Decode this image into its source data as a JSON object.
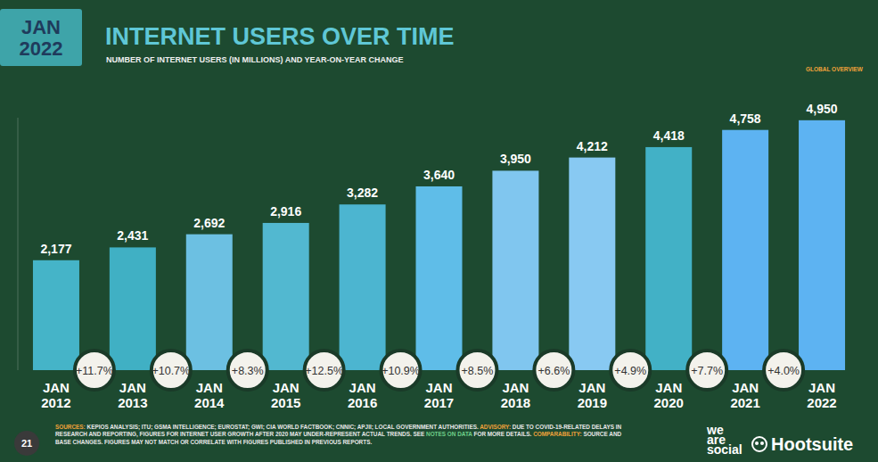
{
  "chart_data": {
    "type": "bar",
    "title": "INTERNET USERS OVER TIME",
    "subtitle": "NUMBER OF INTERNET USERS (IN MILLIONS) AND YEAR-ON-YEAR CHANGE",
    "date_badge": "JAN 2022",
    "section": "GLOBAL OVERVIEW",
    "categories": [
      "JAN 2012",
      "JAN 2013",
      "JAN 2014",
      "JAN 2015",
      "JAN 2016",
      "JAN 2017",
      "JAN 2018",
      "JAN 2019",
      "JAN 2020",
      "JAN 2021",
      "JAN 2022"
    ],
    "values": [
      2177,
      2431,
      2692,
      2916,
      3282,
      3640,
      3950,
      4212,
      4418,
      4758,
      4950
    ],
    "value_labels": [
      "2,177",
      "2,431",
      "2,692",
      "2,916",
      "3,282",
      "3,640",
      "3,950",
      "4,212",
      "4,418",
      "4,758",
      "4,950"
    ],
    "colors": [
      "#45b4c8",
      "#40b0c4",
      "#6cc0e2",
      "#52b8d0",
      "#4cb5d0",
      "#5fbde8",
      "#80c6ef",
      "#88c9f2",
      "#42b1c6",
      "#5db3f2",
      "#5db3f2"
    ],
    "data_labels": true,
    "tick_labels": "x",
    "grid": false,
    "ylim": [
      0,
      5000
    ],
    "yoy_change": {
      "values": [
        11.7,
        10.7,
        8.3,
        12.5,
        10.9,
        8.5,
        6.6,
        4.9,
        7.7,
        4.0
      ],
      "value_labels": [
        "+11.7%",
        "+10.7%",
        "+8.3%",
        "+12.5%",
        "+10.9%",
        "+8.5%",
        "+6.6%",
        "+4.9%",
        "+7.7%",
        "+4.0%"
      ]
    },
    "page_number": 21,
    "footer": {
      "sources_label": "SOURCES:",
      "sources": "KEPIOS ANALYSIS; ITU; GSMA INTELLIGENCE; EUROSTAT; GWI; CIA WORLD FACTBOOK; CNNIC; APJII; LOCAL GOVERNMENT AUTHORITIES.",
      "advisory_label": "ADVISORY:",
      "advisory": "DUE TO COVID-19-RELATED DELAYS IN RESEARCH AND REPORTING, FIGURES FOR INTERNET USER GROWTH AFTER 2020 MAY UNDER-REPRESENT ACTUAL TRENDS. SEE",
      "notes_link": "NOTES ON DATA",
      "advisory_end": "FOR MORE DETAILS.",
      "comparability_label": "COMPARABILITY:",
      "comparability": "SOURCE AND BASE CHANGES. FIGURES MAY NOT MATCH OR CORRELATE WITH FIGURES PUBLISHED IN PREVIOUS REPORTS."
    },
    "logos": [
      "we are social",
      "Hootsuite"
    ]
  }
}
